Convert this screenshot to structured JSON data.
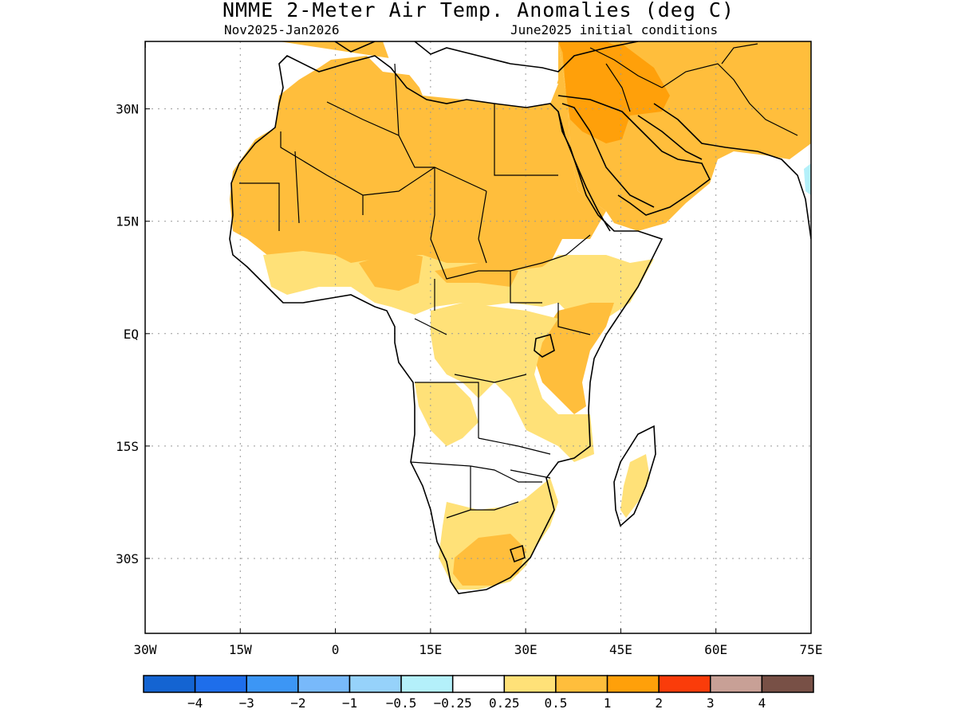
{
  "title": "NMME 2-Meter Air Temp. Anomalies (deg C)",
  "period": "Nov2025-Jan2026",
  "initial_conditions": "June2025 initial conditions",
  "map": {
    "region": "Africa and Middle East",
    "lon_range": [
      -30,
      75
    ],
    "lat_range": [
      -40,
      39
    ],
    "lon_ticks": [
      {
        "value": -30,
        "label": "30W"
      },
      {
        "value": -15,
        "label": "15W"
      },
      {
        "value": 0,
        "label": "0"
      },
      {
        "value": 15,
        "label": "15E"
      },
      {
        "value": 30,
        "label": "30E"
      },
      {
        "value": 45,
        "label": "45E"
      },
      {
        "value": 60,
        "label": "60E"
      },
      {
        "value": 75,
        "label": "75E"
      }
    ],
    "lat_ticks": [
      {
        "value": 30,
        "label": "30N"
      },
      {
        "value": 15,
        "label": "15N"
      },
      {
        "value": 0,
        "label": "EQ"
      },
      {
        "value": -15,
        "label": "15S"
      },
      {
        "value": -30,
        "label": "30S"
      }
    ],
    "grid": true
  },
  "colorbar": {
    "colors": [
      "#1464d2",
      "#1e6eeb",
      "#3c96f5",
      "#78b9fa",
      "#96d2fa",
      "#b4f0fa",
      "#ffffff",
      "#ffe178",
      "#ffbe3c",
      "#ffa00a",
      "#fa3c0a",
      "#c8a096",
      "#785046"
    ],
    "labels": [
      "−4",
      "−3",
      "−2",
      "−1",
      "−0.5",
      "−0.25",
      "0.25",
      "0.5",
      "1",
      "2",
      "3",
      "4"
    ]
  }
}
